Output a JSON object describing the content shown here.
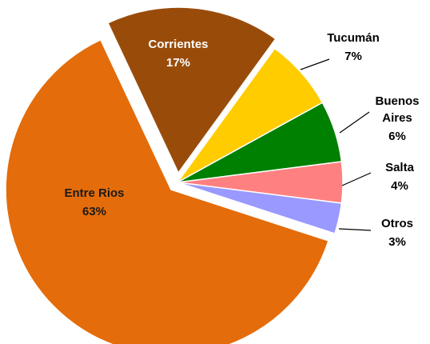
{
  "chart_data": {
    "type": "pie",
    "categories": [
      "Corrientes",
      "Tucumán",
      "Buenos Aires",
      "Salta",
      "Otros",
      "Entre Rios"
    ],
    "values": [
      17,
      7,
      6,
      4,
      3,
      63
    ],
    "value_labels": [
      "17%",
      "7%",
      "6%",
      "4%",
      "3%",
      "63%"
    ],
    "colors": [
      "#994c0a",
      "#ffcc00",
      "#008000",
      "#ff8080",
      "#9999ff",
      "#e46c0a"
    ]
  }
}
